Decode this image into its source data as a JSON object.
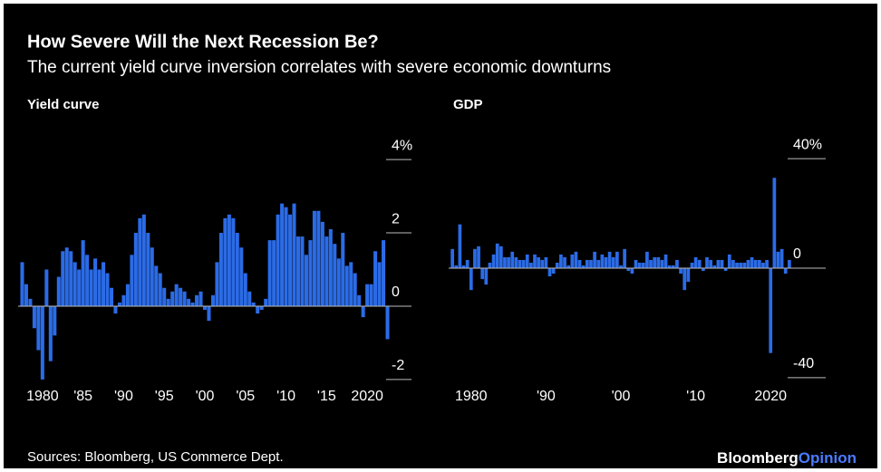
{
  "header": {
    "title": "How Severe Will the Next Recession Be?",
    "subtitle": "The current yield curve inversion correlates with severe economic downturns"
  },
  "chart_data": [
    {
      "type": "bar",
      "title": "Yield curve",
      "color": "#2b6be6",
      "x": [
        1977.5,
        1978,
        1978.5,
        1979,
        1979.5,
        1980,
        1980.5,
        1981,
        1981.5,
        1982,
        1982.5,
        1983,
        1983.5,
        1984,
        1984.5,
        1985,
        1985.5,
        1986,
        1986.5,
        1987,
        1987.5,
        1988,
        1988.5,
        1989,
        1989.5,
        1990,
        1990.5,
        1991,
        1991.5,
        1992,
        1992.5,
        1993,
        1993.5,
        1994,
        1994.5,
        1995,
        1995.5,
        1996,
        1996.5,
        1997,
        1997.5,
        1998,
        1998.5,
        1999,
        1999.5,
        2000,
        2000.5,
        2001,
        2001.5,
        2002,
        2002.5,
        2003,
        2003.5,
        2004,
        2004.5,
        2005,
        2005.5,
        2006,
        2006.5,
        2007,
        2007.5,
        2008,
        2008.5,
        2009,
        2009.5,
        2010,
        2010.5,
        2011,
        2011.5,
        2012,
        2012.5,
        2013,
        2013.5,
        2014,
        2014.5,
        2015,
        2015.5,
        2016,
        2016.5,
        2017,
        2017.5,
        2018,
        2018.5,
        2019,
        2019.5,
        2020,
        2020.5,
        2021,
        2021.5,
        2022,
        2022.5
      ],
      "values": [
        1.2,
        0.6,
        0.2,
        -0.6,
        -1.2,
        -2.0,
        1.0,
        -1.5,
        -0.8,
        0.8,
        1.5,
        1.6,
        1.5,
        1.2,
        1.0,
        1.8,
        1.4,
        1.0,
        1.3,
        1.0,
        1.2,
        0.9,
        0.5,
        -0.2,
        0.1,
        0.3,
        0.6,
        1.4,
        2.0,
        2.4,
        2.5,
        2.0,
        1.6,
        1.1,
        0.9,
        0.5,
        0.2,
        0.4,
        0.6,
        0.5,
        0.4,
        0.2,
        0.1,
        0.3,
        0.4,
        -0.1,
        -0.4,
        0.3,
        1.2,
        2.0,
        2.4,
        2.5,
        2.4,
        2.0,
        1.6,
        0.9,
        0.4,
        0.1,
        -0.2,
        -0.1,
        0.2,
        1.8,
        1.8,
        2.5,
        2.8,
        2.7,
        2.5,
        2.8,
        1.9,
        1.9,
        1.4,
        1.8,
        2.6,
        2.6,
        2.3,
        1.9,
        2.1,
        1.7,
        1.3,
        2.0,
        1.1,
        1.2,
        0.9,
        0.3,
        -0.3,
        0.6,
        0.6,
        1.5,
        1.2,
        1.8,
        -0.9
      ],
      "xlim": [
        1977,
        2023
      ],
      "ylim": [
        -2.2,
        4.2
      ],
      "xticks": [
        1980,
        {
          "value": 1985,
          "label": "'85"
        },
        {
          "value": 1990,
          "label": "'90"
        },
        {
          "value": 1995,
          "label": "'95"
        },
        {
          "value": 2000,
          "label": "'00"
        },
        {
          "value": 2005,
          "label": "'05"
        },
        {
          "value": 2010,
          "label": "'10"
        },
        {
          "value": 2015,
          "label": "'15"
        },
        2020
      ],
      "yticks": [
        -2,
        0,
        2,
        {
          "value": 4,
          "label": "4%"
        }
      ]
    },
    {
      "type": "bar",
      "title": "GDP",
      "color": "#2b6be6",
      "x": [
        1977.5,
        1978,
        1978.5,
        1979,
        1979.5,
        1980,
        1980.5,
        1981,
        1981.5,
        1982,
        1982.5,
        1983,
        1983.5,
        1984,
        1984.5,
        1985,
        1985.5,
        1986,
        1986.5,
        1987,
        1987.5,
        1988,
        1988.5,
        1989,
        1989.5,
        1990,
        1990.5,
        1991,
        1991.5,
        1992,
        1992.5,
        1993,
        1993.5,
        1994,
        1994.5,
        1995,
        1995.5,
        1996,
        1996.5,
        1997,
        1997.5,
        1998,
        1998.5,
        1999,
        1999.5,
        2000,
        2000.5,
        2001,
        2001.5,
        2002,
        2002.5,
        2003,
        2003.5,
        2004,
        2004.5,
        2005,
        2005.5,
        2006,
        2006.5,
        2007,
        2007.5,
        2008,
        2008.5,
        2009,
        2009.5,
        2010,
        2010.5,
        2011,
        2011.5,
        2012,
        2012.5,
        2013,
        2013.5,
        2014,
        2014.5,
        2015,
        2015.5,
        2016,
        2016.5,
        2017,
        2017.5,
        2018,
        2018.5,
        2019,
        2019.5,
        2020,
        2020.5,
        2021,
        2021.5,
        2022,
        2022.5
      ],
      "values": [
        7,
        1,
        16,
        1,
        3,
        -8,
        7,
        8,
        -4,
        -6,
        2,
        5,
        9,
        8,
        4,
        4,
        6,
        4,
        3,
        3,
        5,
        2,
        5,
        4,
        3,
        4,
        -3,
        -2,
        2,
        5,
        4,
        1,
        5,
        6,
        3,
        1,
        3,
        3,
        6,
        3,
        5,
        4,
        6,
        4,
        6,
        1,
        7,
        -1,
        -2,
        3,
        2,
        2,
        6,
        3,
        4,
        4,
        3,
        5,
        1,
        1,
        3,
        -2,
        -8,
        -5,
        2,
        4,
        3,
        -1,
        4,
        3,
        1,
        3,
        3,
        -1,
        5,
        3,
        2,
        2,
        2,
        3,
        4,
        3,
        3,
        2,
        3,
        -31,
        33,
        6,
        7,
        -2,
        3
      ],
      "xlim": [
        1977,
        2023
      ],
      "ylim": [
        -45,
        45
      ],
      "xticks": [
        1980,
        {
          "value": 1990,
          "label": "'90"
        },
        {
          "value": 2000,
          "label": "'00"
        },
        {
          "value": 2010,
          "label": "'10"
        },
        2020
      ],
      "yticks": [
        -40,
        0,
        {
          "value": 40,
          "label": "40%"
        }
      ]
    }
  ],
  "footer": {
    "source": "Sources: Bloomberg, US Commerce Dept.",
    "brand_name": "Bloomberg",
    "brand_section": "Opinion"
  }
}
